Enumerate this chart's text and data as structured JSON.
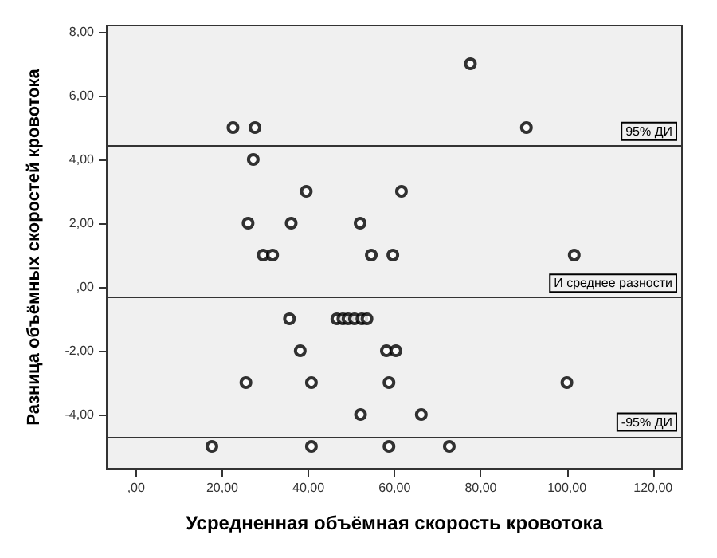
{
  "chart_data": {
    "type": "scatter",
    "xlabel": "Усредненная объёмная скорость кровотока",
    "ylabel": "Разница объёмных скоростей кровотока",
    "x": [
      22.5,
      27.6,
      77.6,
      90.6,
      27.2,
      39.5,
      61.6,
      26.0,
      36.0,
      52.0,
      29.5,
      31.7,
      54.6,
      59.6,
      101.7,
      35.6,
      46.6,
      48.0,
      49.2,
      50.7,
      52.4,
      53.6,
      38.1,
      58.1,
      60.3,
      25.5,
      40.7,
      58.7,
      100.0,
      52.1,
      66.2,
      17.6,
      40.7,
      58.7,
      72.7
    ],
    "series": [
      {
        "color": "#000000",
        "values": [
          5,
          5,
          7,
          5,
          4,
          3,
          3,
          2,
          2,
          2,
          1,
          1,
          1,
          1,
          1,
          -1,
          -1,
          -1,
          -1,
          -1,
          -1,
          -1,
          -2,
          -2,
          -2,
          -3,
          -3,
          -3,
          -3,
          -4,
          -4,
          -5,
          -5,
          -5,
          -5
        ]
      }
    ],
    "xlim": [
      -6.8,
      126.7
    ],
    "ylim": [
      -5.7,
      8.2
    ],
    "xticks": [
      {
        "value": 0,
        "label": ",00"
      },
      {
        "value": 20,
        "label": "20,00"
      },
      {
        "value": 40,
        "label": "40,00"
      },
      {
        "value": 60,
        "label": "60,00"
      },
      {
        "value": 80,
        "label": "80,00"
      },
      {
        "value": 100,
        "label": "100,00"
      },
      {
        "value": 120,
        "label": "120,00"
      }
    ],
    "yticks": [
      {
        "value": -4,
        "label": "-4,00"
      },
      {
        "value": -2,
        "label": "-2,00"
      },
      {
        "value": 0,
        "label": ",00"
      },
      {
        "value": 2,
        "label": "2,00"
      },
      {
        "value": 4,
        "label": "4,00"
      },
      {
        "value": 6,
        "label": "6,00"
      },
      {
        "value": 8,
        "label": "8,00"
      }
    ],
    "ref_lines": [
      {
        "axis": "y",
        "value": 4.43,
        "label": "95% ДИ",
        "color": "#333333"
      },
      {
        "axis": "y",
        "value": -0.33,
        "label": "И среднее разности",
        "color": "#333333"
      },
      {
        "axis": "y",
        "value": -4.69,
        "label": "-95% ДИ",
        "color": "#333333"
      }
    ],
    "marker": "circle",
    "grid": false
  }
}
